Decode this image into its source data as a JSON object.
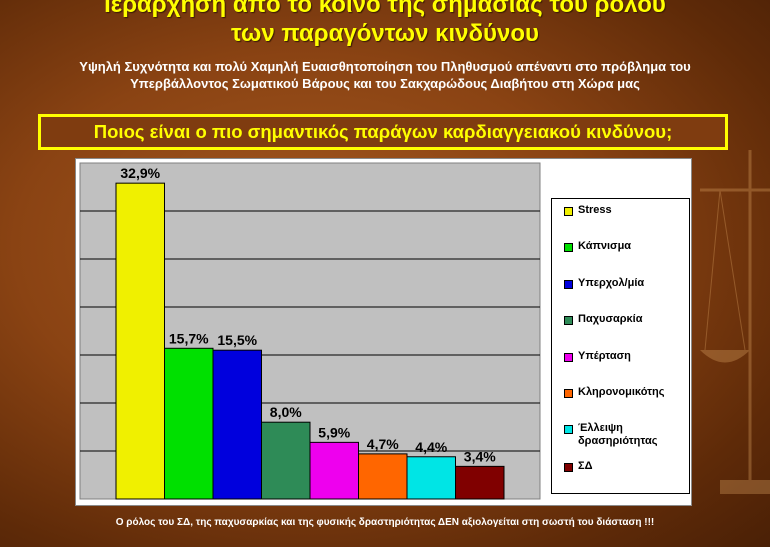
{
  "slide": {
    "title_line1": "Ιεράρχηση από το κοινό της σημασίας του ρόλου",
    "title_line2": "των παραγόντων κινδύνου",
    "subtitle_line1": "Υψηλή Συχνότητα και πολύ Χαμηλή Ευαισθητοποίηση του Πληθυσμού απέναντι στο πρόβλημα του",
    "subtitle_line2": "Υπερβάλλοντος Σωματικού Βάρους και του Σακχαρώδους Διαβήτου στη Χώρα μας",
    "question": "Ποιος είναι ο πιο σημαντικός παράγων καρδιαγγειακού κινδύνου;",
    "footer": "Ο ρόλος του ΣΔ, της παχυσαρκίας και της φυσικής δραστηριότητας ΔΕΝ αξιολογείται στη σωστή του διάσταση !!!"
  },
  "chart_data": {
    "type": "bar",
    "title": "",
    "xlabel": "",
    "ylabel": "",
    "ylim": [
      0,
      35
    ],
    "grid": true,
    "legend_position": "right",
    "background": "#c0c0c0",
    "categories": [
      "Stress",
      "Κάπνισμα",
      "Υπερχολ/μία",
      "Παχυσαρκία",
      "Υπέρταση",
      "Κληρονομικότης",
      "Έλλειψη δρασηριότητας",
      "ΣΔ"
    ],
    "values": [
      32.9,
      15.7,
      15.5,
      8.0,
      5.9,
      4.7,
      4.4,
      3.4
    ],
    "value_labels": [
      "32,9%",
      "15,7%",
      "15,5%",
      "8,0%",
      "5,9%",
      "4,7%",
      "4,4%",
      "3,4%"
    ],
    "colors": [
      "#f0f000",
      "#00e000",
      "#0000dd",
      "#2e8b57",
      "#ee00ee",
      "#ff6600",
      "#00e5e5",
      "#800000"
    ],
    "legend": [
      {
        "line1": "Stress",
        "line2": ""
      },
      {
        "line1": "Κάπνισμα",
        "line2": ""
      },
      {
        "line1": "Υπερχολ/μία",
        "line2": ""
      },
      {
        "line1": "Παχυσαρκία",
        "line2": ""
      },
      {
        "line1": "Υπέρταση",
        "line2": ""
      },
      {
        "line1": "Κληρονομικότης",
        "line2": ""
      },
      {
        "line1": "Έλλειψη",
        "line2": "δρασηριότητας"
      },
      {
        "line1": "ΣΔ",
        "line2": ""
      }
    ]
  },
  "colors": {
    "title": "#ffff00",
    "question_border": "#ffff00"
  }
}
